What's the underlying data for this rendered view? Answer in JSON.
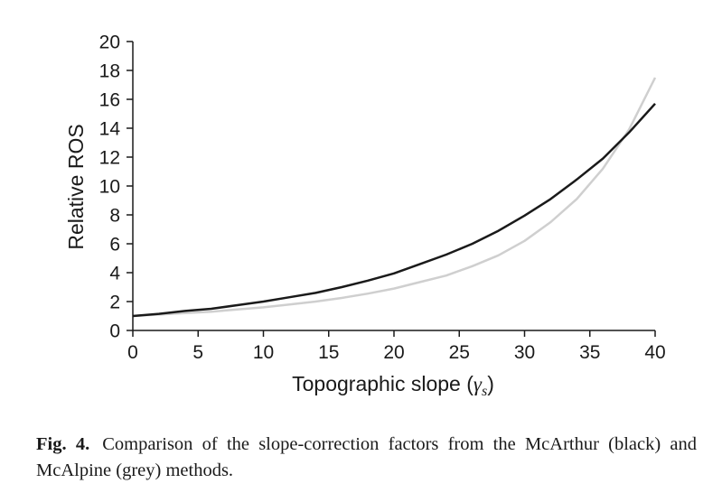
{
  "chart_data": {
    "type": "line",
    "xlabel": "Topographic slope (",
    "xlabel_symbol": "γ",
    "xlabel_subscript": "s",
    "xlabel_close": ")",
    "ylabel": "Relative ROS",
    "xlim": [
      0,
      40
    ],
    "ylim": [
      0,
      20
    ],
    "xticks": [
      "0",
      "5",
      "10",
      "15",
      "20",
      "25",
      "30",
      "35",
      "40"
    ],
    "yticks": [
      "0",
      "2",
      "4",
      "6",
      "8",
      "10",
      "12",
      "14",
      "16",
      "18",
      "20"
    ],
    "grid": false,
    "legend": "none",
    "series": [
      {
        "color": "#1a1a1a",
        "x": [
          0,
          2,
          4,
          6,
          8,
          10,
          12,
          14,
          16,
          18,
          20,
          22,
          24,
          26,
          28,
          30,
          32,
          34,
          36,
          38,
          40
        ],
        "y": [
          1.0,
          1.15,
          1.35,
          1.5,
          1.75,
          2.0,
          2.3,
          2.6,
          3.0,
          3.45,
          3.95,
          4.6,
          5.25,
          6.0,
          6.9,
          7.95,
          9.1,
          10.45,
          11.9,
          13.7,
          15.7
        ]
      },
      {
        "color": "#cfcfcf",
        "x": [
          0,
          2,
          4,
          6,
          8,
          10,
          12,
          14,
          16,
          18,
          20,
          22,
          24,
          26,
          28,
          30,
          32,
          34,
          36,
          38,
          40
        ],
        "y": [
          1.0,
          1.1,
          1.2,
          1.3,
          1.45,
          1.6,
          1.8,
          2.0,
          2.25,
          2.55,
          2.9,
          3.35,
          3.8,
          4.45,
          5.2,
          6.2,
          7.5,
          9.1,
          11.2,
          13.9,
          17.5
        ]
      }
    ]
  },
  "caption": {
    "label": "Fig. 4.",
    "text": "Comparison of the slope-correction factors from the McArthur (black) and McAlpine (grey) methods."
  }
}
